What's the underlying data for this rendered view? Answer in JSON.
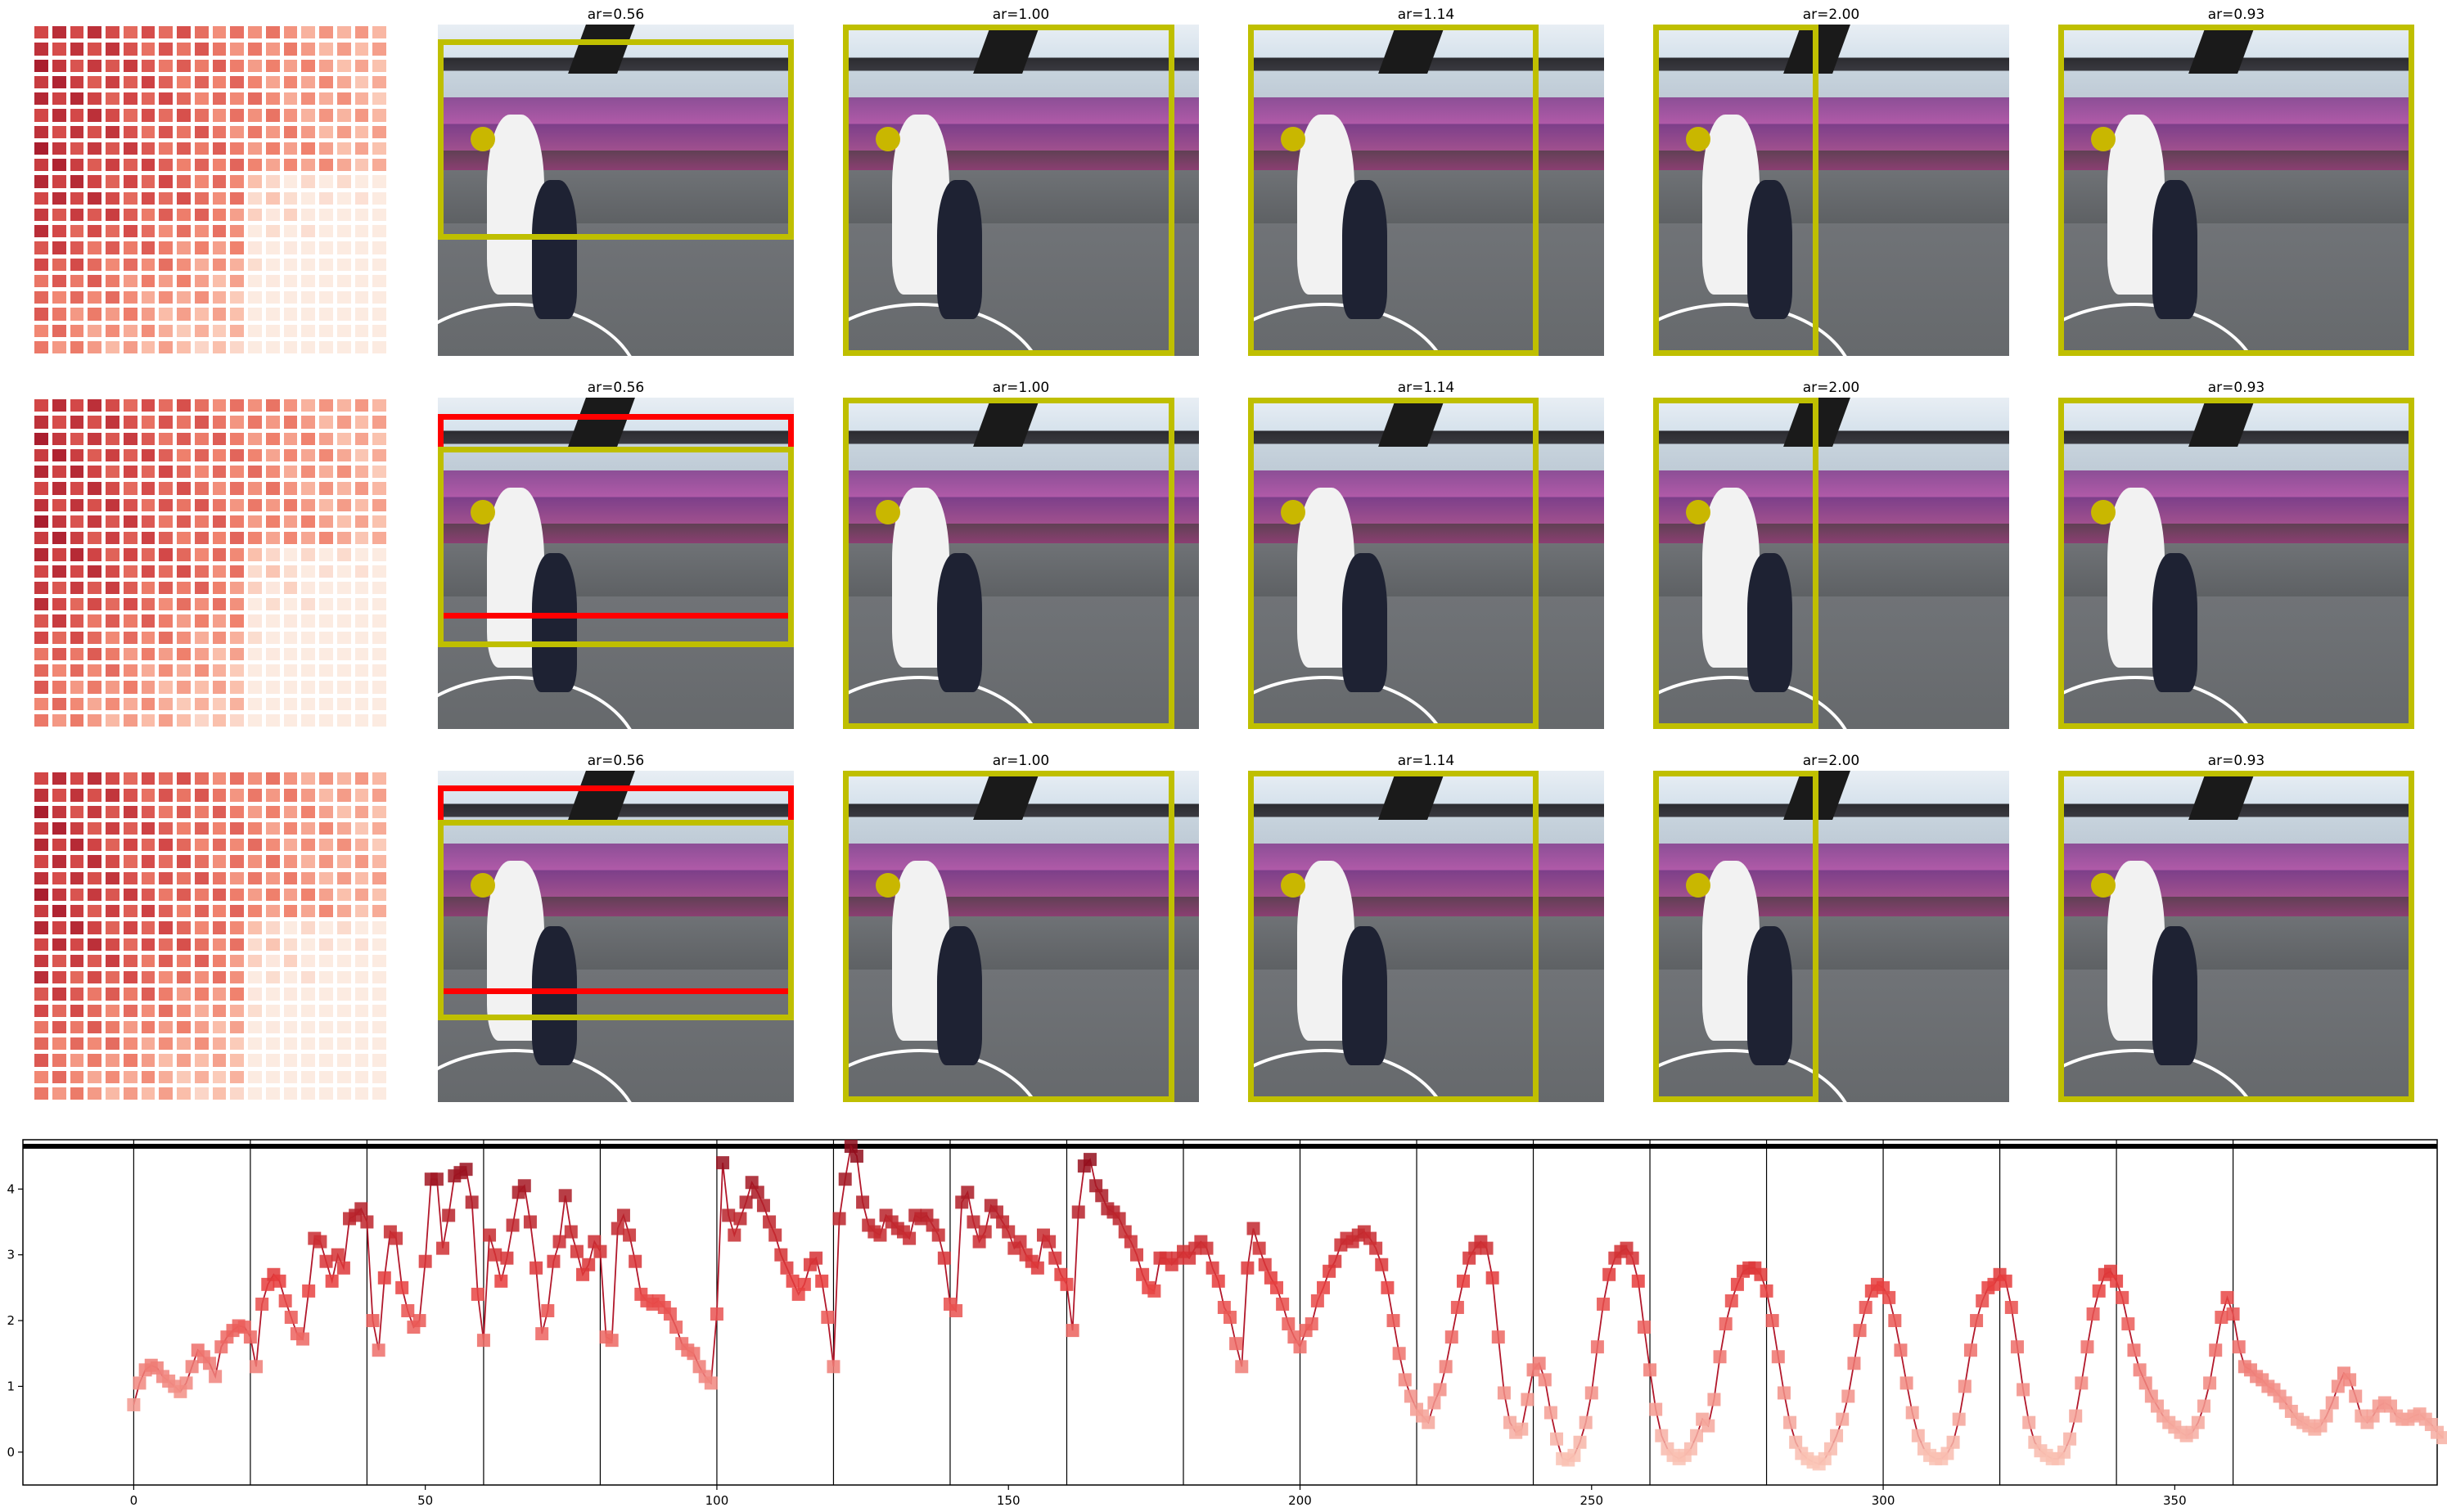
{
  "figure": {
    "rows": 3,
    "columns": 6,
    "row_panels": [
      {
        "row": 1,
        "cells": [
          {
            "kind": "heatmap"
          },
          {
            "kind": "photo",
            "label": "ar=0.56",
            "boxes": [
              "yellow"
            ]
          },
          {
            "kind": "photo",
            "label": "ar=1.00",
            "boxes": [
              "yellow"
            ]
          },
          {
            "kind": "photo",
            "label": "ar=1.14",
            "boxes": [
              "yellow"
            ]
          },
          {
            "kind": "photo",
            "label": "ar=2.00",
            "boxes": [
              "yellow"
            ]
          },
          {
            "kind": "photo",
            "label": "ar=0.93",
            "boxes": [
              "yellow"
            ]
          }
        ]
      },
      {
        "row": 2,
        "cells": [
          {
            "kind": "heatmap"
          },
          {
            "kind": "photo",
            "label": "ar=0.56",
            "boxes": [
              "red",
              "yellow"
            ]
          },
          {
            "kind": "photo",
            "label": "ar=1.00",
            "boxes": [
              "yellow"
            ]
          },
          {
            "kind": "photo",
            "label": "ar=1.14",
            "boxes": [
              "yellow"
            ]
          },
          {
            "kind": "photo",
            "label": "ar=2.00",
            "boxes": [
              "yellow"
            ]
          },
          {
            "kind": "photo",
            "label": "ar=0.93",
            "boxes": [
              "yellow"
            ]
          }
        ]
      },
      {
        "row": 3,
        "cells": [
          {
            "kind": "heatmap"
          },
          {
            "kind": "photo",
            "label": "ar=0.56",
            "boxes": [
              "red",
              "yellow"
            ]
          },
          {
            "kind": "photo",
            "label": "ar=1.00",
            "boxes": [
              "yellow"
            ]
          },
          {
            "kind": "photo",
            "label": "ar=1.14",
            "boxes": [
              "yellow"
            ]
          },
          {
            "kind": "photo",
            "label": "ar=2.00",
            "boxes": [
              "yellow"
            ]
          },
          {
            "kind": "photo",
            "label": "ar=0.93",
            "boxes": [
              "yellow"
            ]
          }
        ]
      }
    ],
    "colors": {
      "box_yellow": "#bfbf00",
      "box_red": "#ff0000",
      "line": "#b2182b",
      "marker_high": "#8b0a1a",
      "marker_low": "#fcd5c5",
      "reference_line": "#000000"
    }
  },
  "chart_data": {
    "type": "line",
    "markers": "square",
    "marker_color_by_value": true,
    "colormap": "Reds",
    "x_ticks": [
      0,
      50,
      100,
      150,
      200,
      250,
      300,
      350
    ],
    "y_ticks": [
      0,
      1,
      2,
      3,
      4
    ],
    "xlim": [
      -19,
      395
    ],
    "ylim": [
      -0.5,
      4.75
    ],
    "horizontal_reference_line": 4.65,
    "vertical_separators": [
      0,
      20,
      40,
      60,
      80,
      100,
      120,
      140,
      160,
      180,
      200,
      220,
      240,
      260,
      280,
      300,
      320,
      340,
      360
    ],
    "grid": false,
    "title": "",
    "xlabel": "",
    "ylabel": "",
    "y": [
      0.72,
      1.05,
      1.25,
      1.32,
      1.28,
      1.15,
      1.08,
      1.0,
      0.92,
      1.05,
      1.3,
      1.55,
      1.45,
      1.35,
      1.15,
      1.6,
      1.75,
      1.85,
      1.92,
      1.9,
      1.75,
      1.3,
      2.25,
      2.55,
      2.7,
      2.6,
      2.3,
      2.05,
      1.8,
      1.72,
      2.45,
      3.25,
      3.2,
      2.9,
      2.6,
      3.0,
      2.8,
      3.55,
      3.6,
      3.7,
      3.5,
      2.0,
      1.55,
      2.65,
      3.35,
      3.25,
      2.5,
      2.15,
      1.9,
      2.0,
      2.9,
      4.15,
      4.15,
      3.1,
      3.6,
      4.2,
      4.25,
      4.3,
      3.8,
      2.4,
      1.7,
      3.3,
      3.0,
      2.6,
      2.95,
      3.45,
      3.95,
      4.05,
      3.5,
      2.8,
      1.8,
      2.15,
      2.9,
      3.2,
      3.9,
      3.35,
      3.05,
      2.7,
      2.85,
      3.2,
      3.05,
      1.75,
      1.7,
      3.4,
      3.6,
      3.3,
      2.9,
      2.4,
      2.3,
      2.25,
      2.3,
      2.2,
      2.1,
      1.9,
      1.65,
      1.55,
      1.5,
      1.3,
      1.15,
      1.05,
      2.1,
      4.4,
      3.6,
      3.3,
      3.55,
      3.8,
      4.1,
      3.95,
      3.75,
      3.5,
      3.3,
      3.0,
      2.8,
      2.6,
      2.4,
      2.55,
      2.85,
      2.95,
      2.6,
      2.05,
      1.3,
      3.55,
      4.15,
      4.65,
      4.5,
      3.8,
      3.45,
      3.35,
      3.3,
      3.6,
      3.5,
      3.4,
      3.35,
      3.25,
      3.6,
      3.55,
      3.6,
      3.45,
      3.3,
      2.95,
      2.25,
      2.15,
      3.8,
      3.95,
      3.5,
      3.2,
      3.35,
      3.75,
      3.65,
      3.5,
      3.35,
      3.1,
      3.2,
      3.0,
      2.9,
      2.8,
      3.3,
      3.2,
      2.95,
      2.7,
      2.55,
      1.85,
      3.65,
      4.35,
      4.45,
      4.05,
      3.9,
      3.7,
      3.65,
      3.55,
      3.35,
      3.2,
      3.0,
      2.7,
      2.5,
      2.45,
      2.95,
      2.95,
      2.85,
      2.95,
      3.05,
      2.95,
      3.1,
      3.2,
      3.1,
      2.8,
      2.6,
      2.2,
      2.05,
      1.65,
      1.3,
      2.8,
      3.4,
      3.1,
      2.85,
      2.65,
      2.5,
      2.25,
      1.95,
      1.75,
      1.6,
      1.85,
      1.95,
      2.3,
      2.5,
      2.75,
      2.9,
      3.15,
      3.25,
      3.2,
      3.3,
      3.35,
      3.25,
      3.1,
      2.85,
      2.5,
      2.0,
      1.5,
      1.1,
      0.85,
      0.65,
      0.55,
      0.45,
      0.75,
      0.95,
      1.3,
      1.75,
      2.2,
      2.6,
      2.95,
      3.1,
      3.2,
      3.1,
      2.65,
      1.75,
      0.9,
      0.45,
      0.3,
      0.35,
      0.8,
      1.25,
      1.35,
      1.1,
      0.6,
      0.2,
      -0.1,
      -0.12,
      -0.05,
      0.15,
      0.45,
      0.9,
      1.6,
      2.25,
      2.7,
      2.95,
      3.05,
      3.1,
      2.95,
      2.6,
      1.9,
      1.25,
      0.65,
      0.25,
      0.05,
      -0.05,
      -0.1,
      -0.05,
      0.05,
      0.25,
      0.5,
      0.4,
      0.8,
      1.45,
      1.95,
      2.3,
      2.55,
      2.75,
      2.8,
      2.8,
      2.7,
      2.45,
      2.0,
      1.45,
      0.9,
      0.45,
      0.15,
      -0.02,
      -0.1,
      -0.15,
      -0.18,
      -0.1,
      0.05,
      0.25,
      0.5,
      0.85,
      1.35,
      1.85,
      2.2,
      2.45,
      2.55,
      2.5,
      2.35,
      2.0,
      1.55,
      1.05,
      0.6,
      0.25,
      0.05,
      -0.05,
      -0.1,
      -0.1,
      -0.02,
      0.15,
      0.5,
      1.0,
      1.55,
      2.0,
      2.3,
      2.5,
      2.55,
      2.7,
      2.6,
      2.2,
      1.6,
      0.95,
      0.45,
      0.15,
      0.02,
      -0.05,
      -0.1,
      -0.1,
      0.0,
      0.2,
      0.55,
      1.05,
      1.6,
      2.1,
      2.45,
      2.7,
      2.75,
      2.6,
      2.35,
      1.95,
      1.55,
      1.25,
      1.05,
      0.85,
      0.7,
      0.55,
      0.45,
      0.38,
      0.3,
      0.25,
      0.3,
      0.45,
      0.7,
      1.05,
      1.55,
      2.05,
      2.35,
      2.1,
      1.6,
      1.3,
      1.25,
      1.15,
      1.1,
      1.0,
      0.95,
      0.85,
      0.75,
      0.62,
      0.5,
      0.45,
      0.4,
      0.35,
      0.4,
      0.55,
      0.75,
      1.0,
      1.2,
      1.1,
      0.85,
      0.55,
      0.45,
      0.55,
      0.7,
      0.75,
      0.7,
      0.55,
      0.5,
      0.5,
      0.55,
      0.58,
      0.5,
      0.42,
      0.3,
      0.22
    ]
  }
}
